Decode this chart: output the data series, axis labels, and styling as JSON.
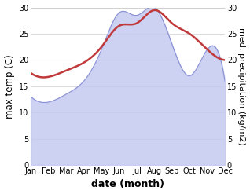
{
  "months": [
    "Jan",
    "Feb",
    "Mar",
    "Apr",
    "May",
    "Jun",
    "Jul",
    "Aug",
    "Sep",
    "Oct",
    "Nov",
    "Dec"
  ],
  "max_temp": [
    17.5,
    16.8,
    18.0,
    19.5,
    22.5,
    26.5,
    27.0,
    29.5,
    27.0,
    25.0,
    22.0,
    20.0
  ],
  "precipitation": [
    13.0,
    12.0,
    13.5,
    16.0,
    22.0,
    29.0,
    28.5,
    30.0,
    23.0,
    17.0,
    22.0,
    16.0
  ],
  "temp_color": "#c0393b",
  "precip_fill_color": "#c5caf0",
  "precip_line_color": "#8890d4",
  "ylim": [
    0,
    30
  ],
  "yticks": [
    0,
    5,
    10,
    15,
    20,
    25,
    30
  ],
  "ylabel_left": "max temp (C)",
  "ylabel_right": "med. precipitation (kg/m2)",
  "xlabel": "date (month)",
  "bg_color": "#ffffff",
  "grid_color": "#cccccc",
  "tick_fontsize": 7,
  "label_fontsize": 8.5,
  "xlabel_fontsize": 9,
  "line_width": 1.8,
  "fill_alpha": 0.85
}
